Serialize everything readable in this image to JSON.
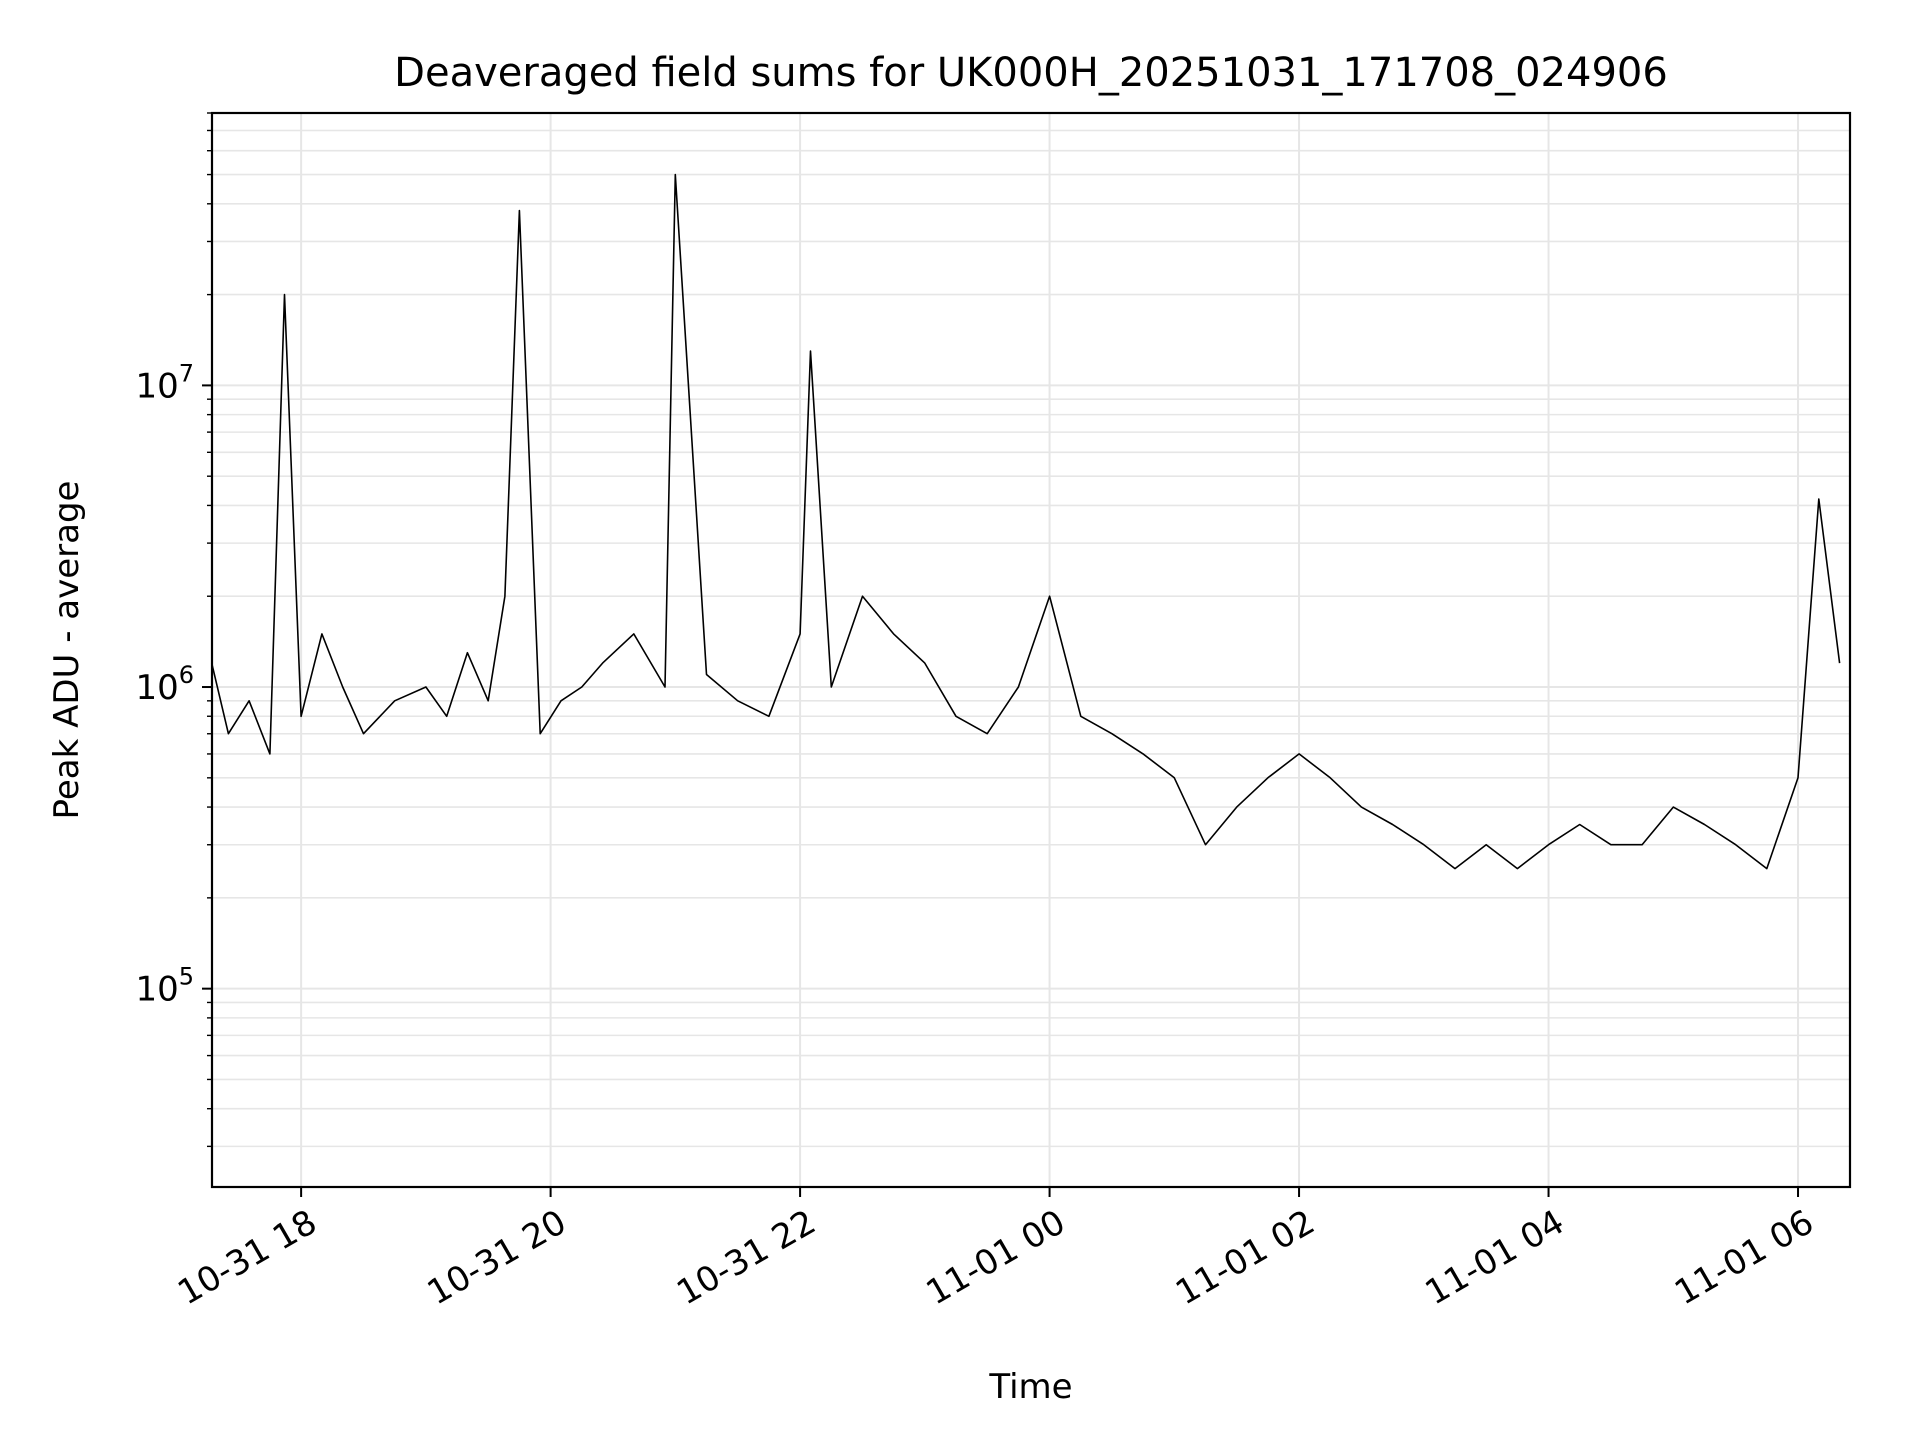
{
  "chart_data": {
    "type": "line",
    "title": "Deaveraged field sums for UK000H_20251031_171708_024906",
    "xlabel": "Time",
    "ylabel": "Peak ADU - average",
    "x_range": [
      "2025-10-31T17:17:08",
      "2025-11-01T06:25:00"
    ],
    "ylim": [
      22000,
      80000000
    ],
    "yscale": "log",
    "grid": true,
    "line_color": "#000000",
    "grid_color": "#e6e6e6",
    "x_ticks": [
      {
        "value": "2025-10-31T18:00",
        "label": "10-31 18"
      },
      {
        "value": "2025-10-31T20:00",
        "label": "10-31 20"
      },
      {
        "value": "2025-10-31T22:00",
        "label": "10-31 22"
      },
      {
        "value": "2025-11-01T00:00",
        "label": "11-01 00"
      },
      {
        "value": "2025-11-01T02:00",
        "label": "11-01 02"
      },
      {
        "value": "2025-11-01T04:00",
        "label": "11-01 04"
      },
      {
        "value": "2025-11-01T06:00",
        "label": "11-01 06"
      }
    ],
    "y_ticks": [
      {
        "value": 100000,
        "base": "10",
        "exp": "5"
      },
      {
        "value": 1000000,
        "base": "10",
        "exp": "6"
      },
      {
        "value": 10000000,
        "base": "10",
        "exp": "7"
      }
    ],
    "series": [
      {
        "x": [
          "2025-10-31T17:17",
          "2025-10-31T17:25",
          "2025-10-31T17:35",
          "2025-10-31T17:45",
          "2025-10-31T17:52",
          "2025-10-31T18:00",
          "2025-10-31T18:10",
          "2025-10-31T18:20",
          "2025-10-31T18:30",
          "2025-10-31T18:45",
          "2025-10-31T19:00",
          "2025-10-31T19:10",
          "2025-10-31T19:20",
          "2025-10-31T19:30",
          "2025-10-31T19:38",
          "2025-10-31T19:45",
          "2025-10-31T19:55",
          "2025-10-31T20:05",
          "2025-10-31T20:15",
          "2025-10-31T20:25",
          "2025-10-31T20:40",
          "2025-10-31T20:55",
          "2025-10-31T21:00",
          "2025-10-31T21:15",
          "2025-10-31T21:30",
          "2025-10-31T21:45",
          "2025-10-31T22:00",
          "2025-10-31T22:05",
          "2025-10-31T22:15",
          "2025-10-31T22:30",
          "2025-10-31T22:45",
          "2025-10-31T23:00",
          "2025-10-31T23:15",
          "2025-10-31T23:30",
          "2025-10-31T23:45",
          "2025-11-01T00:00",
          "2025-11-01T00:15",
          "2025-11-01T00:30",
          "2025-11-01T00:45",
          "2025-11-01T01:00",
          "2025-11-01T01:15",
          "2025-11-01T01:30",
          "2025-11-01T01:45",
          "2025-11-01T02:00",
          "2025-11-01T02:15",
          "2025-11-01T02:30",
          "2025-11-01T02:45",
          "2025-11-01T03:00",
          "2025-11-01T03:15",
          "2025-11-01T03:30",
          "2025-11-01T03:45",
          "2025-11-01T04:00",
          "2025-11-01T04:15",
          "2025-11-01T04:30",
          "2025-11-01T04:45",
          "2025-11-01T05:00",
          "2025-11-01T05:15",
          "2025-11-01T05:30",
          "2025-11-01T05:45",
          "2025-11-01T06:00",
          "2025-11-01T06:10",
          "2025-11-01T06:20"
        ],
        "y": [
          1200000,
          700000,
          900000,
          600000,
          20000000,
          800000,
          1500000,
          1000000,
          700000,
          900000,
          1000000,
          800000,
          1300000,
          900000,
          2000000,
          38000000,
          700000,
          900000,
          1000000,
          1200000,
          1500000,
          1000000,
          50000000,
          1100000,
          900000,
          800000,
          1500000,
          13000000,
          1000000,
          2000000,
          1500000,
          1200000,
          800000,
          700000,
          1000000,
          2000000,
          800000,
          700000,
          600000,
          500000,
          300000,
          400000,
          500000,
          600000,
          500000,
          400000,
          350000,
          300000,
          250000,
          300000,
          250000,
          300000,
          350000,
          300000,
          300000,
          400000,
          350000,
          300000,
          250000,
          500000,
          4200000,
          1200000
        ]
      }
    ]
  }
}
